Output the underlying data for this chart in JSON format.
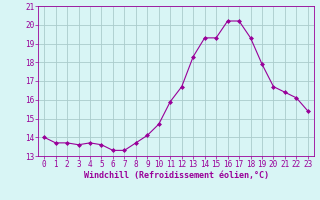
{
  "x": [
    0,
    1,
    2,
    3,
    4,
    5,
    6,
    7,
    8,
    9,
    10,
    11,
    12,
    13,
    14,
    15,
    16,
    17,
    18,
    19,
    20,
    21,
    22,
    23
  ],
  "y": [
    14.0,
    13.7,
    13.7,
    13.6,
    13.7,
    13.6,
    13.3,
    13.3,
    13.7,
    14.1,
    14.7,
    15.9,
    16.7,
    18.3,
    19.3,
    19.3,
    20.2,
    20.2,
    19.3,
    17.9,
    16.7,
    16.4,
    16.1,
    15.4
  ],
  "line_color": "#990099",
  "marker": "D",
  "marker_size": 2.0,
  "bg_color": "#d8f5f5",
  "grid_color": "#aacccc",
  "xlabel": "Windchill (Refroidissement éolien,°C)",
  "xlabel_color": "#990099",
  "tick_color": "#990099",
  "spine_color": "#990099",
  "ylim": [
    13,
    21
  ],
  "xlim": [
    -0.5,
    23.5
  ],
  "yticks": [
    13,
    14,
    15,
    16,
    17,
    18,
    19,
    20,
    21
  ],
  "xticks": [
    0,
    1,
    2,
    3,
    4,
    5,
    6,
    7,
    8,
    9,
    10,
    11,
    12,
    13,
    14,
    15,
    16,
    17,
    18,
    19,
    20,
    21,
    22,
    23
  ],
  "figsize": [
    3.2,
    2.0
  ],
  "dpi": 100,
  "tick_fontsize": 5.5,
  "xlabel_fontsize": 6.0,
  "linewidth": 0.8
}
